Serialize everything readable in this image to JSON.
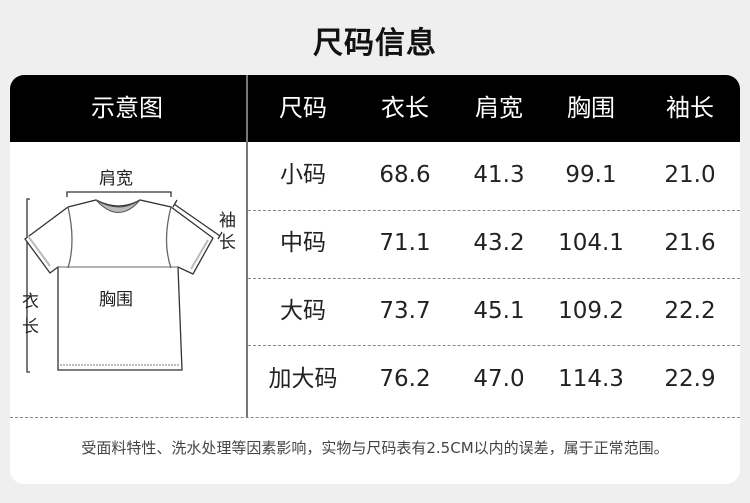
{
  "title": "尺码信息",
  "header": {
    "diagram": "示意图",
    "columns": [
      "尺码",
      "衣长",
      "肩宽",
      "胸围",
      "袖长"
    ]
  },
  "diagram_labels": {
    "shoulder": "肩宽",
    "sleeve": "袖长",
    "chest": "胸围",
    "length": "衣长"
  },
  "rows": [
    [
      "小码",
      "68.6",
      "41.3",
      "99.1",
      "21.0"
    ],
    [
      "中码",
      "71.1",
      "43.2",
      "104.1",
      "21.6"
    ],
    [
      "大码",
      "73.7",
      "45.1",
      "109.2",
      "22.2"
    ],
    [
      "加大码",
      "76.2",
      "47.0",
      "114.3",
      "22.9"
    ]
  ],
  "note": "受面料特性、洗水处理等因素影响，实物与尺码表有2.5CM以内的误差，属于正常范围。"
}
